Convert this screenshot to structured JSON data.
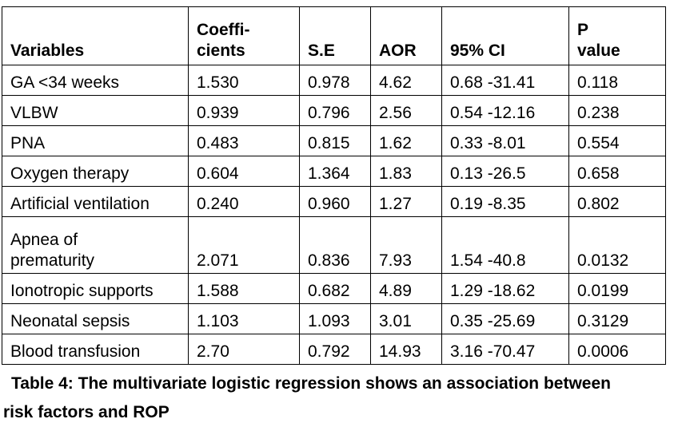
{
  "table": {
    "headers": [
      {
        "line1": "",
        "line2": "Variables"
      },
      {
        "line1": "Coeffi-",
        "line2": "cients"
      },
      {
        "line1": "",
        "line2": "S.E"
      },
      {
        "line1": "",
        "line2": "AOR"
      },
      {
        "line1": "",
        "line2": "95% CI"
      },
      {
        "line1": "P",
        "line2": "value"
      }
    ],
    "rows": [
      {
        "variable": "GA <34 weeks",
        "variable2": "",
        "coef": "1.530",
        "se": "0.978",
        "aor": "4.62",
        "ci": "0.68 -31.41",
        "p": "0.118"
      },
      {
        "variable": "VLBW",
        "variable2": "",
        "coef": "0.939",
        "se": "0.796",
        "aor": "2.56",
        "ci": "0.54 -12.16",
        "p": "0.238"
      },
      {
        "variable": "PNA",
        "variable2": "",
        "coef": "0.483",
        "se": "0.815",
        "aor": "1.62",
        "ci": "0.33 -8.01",
        "p": "0.554"
      },
      {
        "variable": "Oxygen therapy",
        "variable2": "",
        "coef": "0.604",
        "se": "1.364",
        "aor": "1.83",
        "ci": "0.13 -26.5",
        "p": "0.658"
      },
      {
        "variable": "Artificial ventilation",
        "variable2": "",
        "coef": "0.240",
        "se": "0.960",
        "aor": "1.27",
        "ci": "0.19 -8.35",
        "p": "0.802"
      },
      {
        "variable": "Apnea of",
        "variable2": "prematurity",
        "coef": "2.071",
        "se": "0.836",
        "aor": "7.93",
        "ci": "1.54 -40.8",
        "p": "0.0132"
      },
      {
        "variable": "Ionotropic supports",
        "variable2": "",
        "coef": "1.588",
        "se": "0.682",
        "aor": "4.89",
        "ci": "1.29 -18.62",
        "p": "0.0199"
      },
      {
        "variable": "Neonatal sepsis",
        "variable2": "",
        "coef": "1.103",
        "se": "1.093",
        "aor": "3.01",
        "ci": "0.35 -25.69",
        "p": "0.3129"
      },
      {
        "variable": "Blood transfusion",
        "variable2": "",
        "coef": "2.70",
        "se": "0.792",
        "aor": "14.93",
        "ci": "3.16 -70.47",
        "p": "0.0006"
      }
    ]
  },
  "caption": "Table 4: The multivariate logistic regression shows an association between risk factors and ROP"
}
